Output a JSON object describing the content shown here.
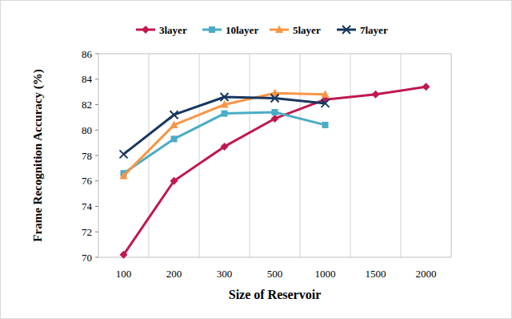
{
  "chart_data": {
    "type": "line",
    "xlabel": "Size of Reservoir",
    "ylabel": "Frame Recognition Accuracy (%)",
    "categories": [
      "100",
      "200",
      "300",
      "500",
      "1000",
      "1500",
      "2000"
    ],
    "series": [
      {
        "name": "3layer",
        "color": "#c0184f",
        "marker": "diamond",
        "values": [
          70.2,
          76.0,
          78.7,
          80.9,
          82.4,
          82.8,
          83.4
        ]
      },
      {
        "name": "10layer",
        "color": "#4bacc6",
        "marker": "square",
        "values": [
          76.6,
          79.3,
          81.3,
          81.4,
          80.4,
          null,
          null
        ]
      },
      {
        "name": "5layer",
        "color": "#f79646",
        "marker": "triangle",
        "values": [
          76.4,
          80.4,
          82.0,
          82.9,
          82.8,
          null,
          null
        ]
      },
      {
        "name": "7layer",
        "color": "#17375e",
        "marker": "x",
        "values": [
          78.1,
          81.2,
          82.6,
          82.5,
          82.1,
          null,
          null
        ]
      }
    ],
    "ylim": [
      70,
      86
    ],
    "yticks": [
      70,
      72,
      74,
      76,
      78,
      80,
      82,
      84,
      86
    ],
    "grid": true,
    "legend": "top"
  }
}
